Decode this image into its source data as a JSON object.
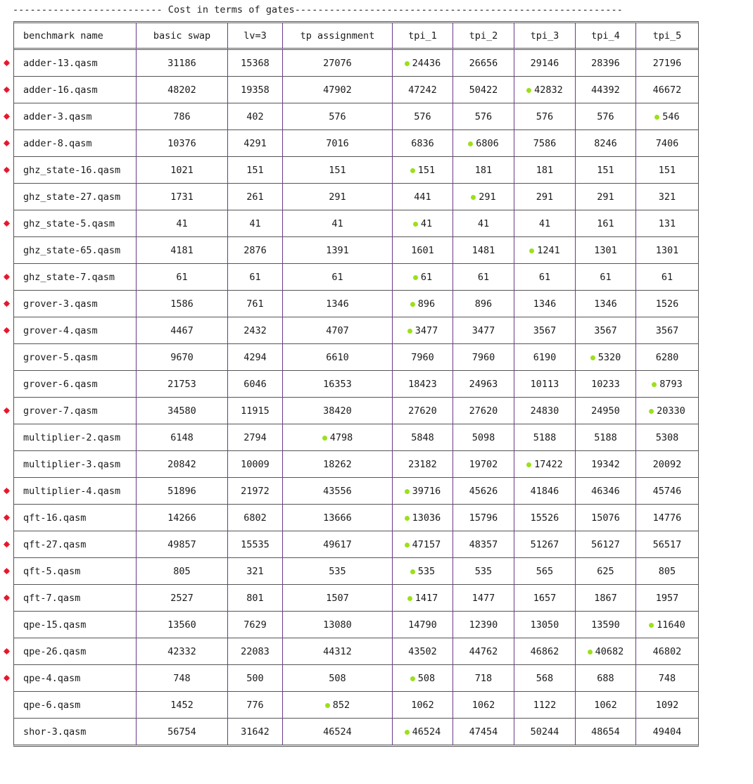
{
  "title": "-------------------------- Cost in terms of gates---------------------------------------------------------",
  "columns": [
    "benchmark name",
    "basic swap",
    "lv=3",
    "tp assignment",
    "tpi_1",
    "tpi_2",
    "tpi_3",
    "tpi_4",
    "tpi_5"
  ],
  "marker_colors": {
    "row_marker": "#e8162c",
    "best_marker": "#9be01a"
  },
  "rows": [
    {
      "name": "adder-13.qasm",
      "values": [
        "31186",
        "15368",
        "27076",
        "24436",
        "26656",
        "29146",
        "28396",
        "27196"
      ],
      "marked": true,
      "best": 3
    },
    {
      "name": "adder-16.qasm",
      "values": [
        "48202",
        "19358",
        "47902",
        "47242",
        "50422",
        "42832",
        "44392",
        "46672"
      ],
      "marked": true,
      "best": 5
    },
    {
      "name": "adder-3.qasm",
      "values": [
        "786",
        "402",
        "576",
        "576",
        "576",
        "576",
        "576",
        "546"
      ],
      "marked": true,
      "best": 7
    },
    {
      "name": "adder-8.qasm",
      "values": [
        "10376",
        "4291",
        "7016",
        "6836",
        "6806",
        "7586",
        "8246",
        "7406"
      ],
      "marked": true,
      "best": 4
    },
    {
      "name": "ghz_state-16.qasm",
      "values": [
        "1021",
        "151",
        "151",
        "151",
        "181",
        "181",
        "151",
        "151"
      ],
      "marked": true,
      "best": 3
    },
    {
      "name": "ghz_state-27.qasm",
      "values": [
        "1731",
        "261",
        "291",
        "441",
        "291",
        "291",
        "291",
        "321"
      ],
      "marked": false,
      "best": 4
    },
    {
      "name": "ghz_state-5.qasm",
      "values": [
        "41",
        "41",
        "41",
        "41",
        "41",
        "41",
        "161",
        "131"
      ],
      "marked": true,
      "best": 3
    },
    {
      "name": "ghz_state-65.qasm",
      "values": [
        "4181",
        "2876",
        "1391",
        "1601",
        "1481",
        "1241",
        "1301",
        "1301"
      ],
      "marked": false,
      "best": 5
    },
    {
      "name": "ghz_state-7.qasm",
      "values": [
        "61",
        "61",
        "61",
        "61",
        "61",
        "61",
        "61",
        "61"
      ],
      "marked": true,
      "best": 3
    },
    {
      "name": "grover-3.qasm",
      "values": [
        "1586",
        "761",
        "1346",
        "896",
        "896",
        "1346",
        "1346",
        "1526"
      ],
      "marked": true,
      "best": 3
    },
    {
      "name": "grover-4.qasm",
      "values": [
        "4467",
        "2432",
        "4707",
        "3477",
        "3477",
        "3567",
        "3567",
        "3567"
      ],
      "marked": true,
      "best": 3
    },
    {
      "name": "grover-5.qasm",
      "values": [
        "9670",
        "4294",
        "6610",
        "7960",
        "7960",
        "6190",
        "5320",
        "6280"
      ],
      "marked": false,
      "best": 6
    },
    {
      "name": "grover-6.qasm",
      "values": [
        "21753",
        "6046",
        "16353",
        "18423",
        "24963",
        "10113",
        "10233",
        "8793"
      ],
      "marked": false,
      "best": 7
    },
    {
      "name": "grover-7.qasm",
      "values": [
        "34580",
        "11915",
        "38420",
        "27620",
        "27620",
        "24830",
        "24950",
        "20330"
      ],
      "marked": true,
      "best": 7
    },
    {
      "name": "multiplier-2.qasm",
      "values": [
        "6148",
        "2794",
        "4798",
        "5848",
        "5098",
        "5188",
        "5188",
        "5308"
      ],
      "marked": false,
      "best": 2
    },
    {
      "name": "multiplier-3.qasm",
      "values": [
        "20842",
        "10009",
        "18262",
        "23182",
        "19702",
        "17422",
        "19342",
        "20092"
      ],
      "marked": false,
      "best": 5
    },
    {
      "name": "multiplier-4.qasm",
      "values": [
        "51896",
        "21972",
        "43556",
        "39716",
        "45626",
        "41846",
        "46346",
        "45746"
      ],
      "marked": true,
      "best": 3
    },
    {
      "name": "qft-16.qasm",
      "values": [
        "14266",
        "6802",
        "13666",
        "13036",
        "15796",
        "15526",
        "15076",
        "14776"
      ],
      "marked": true,
      "best": 3
    },
    {
      "name": "qft-27.qasm",
      "values": [
        "49857",
        "15535",
        "49617",
        "47157",
        "48357",
        "51267",
        "56127",
        "56517"
      ],
      "marked": true,
      "best": 3
    },
    {
      "name": "qft-5.qasm",
      "values": [
        "805",
        "321",
        "535",
        "535",
        "535",
        "565",
        "625",
        "805"
      ],
      "marked": true,
      "best": 3
    },
    {
      "name": "qft-7.qasm",
      "values": [
        "2527",
        "801",
        "1507",
        "1417",
        "1477",
        "1657",
        "1867",
        "1957"
      ],
      "marked": true,
      "best": 3
    },
    {
      "name": "qpe-15.qasm",
      "values": [
        "13560",
        "7629",
        "13080",
        "14790",
        "12390",
        "13050",
        "13590",
        "11640"
      ],
      "marked": false,
      "best": 7
    },
    {
      "name": "qpe-26.qasm",
      "values": [
        "42332",
        "22083",
        "44312",
        "43502",
        "44762",
        "46862",
        "40682",
        "46802"
      ],
      "marked": true,
      "best": 6
    },
    {
      "name": "qpe-4.qasm",
      "values": [
        "748",
        "500",
        "508",
        "508",
        "718",
        "568",
        "688",
        "748"
      ],
      "marked": true,
      "best": 3
    },
    {
      "name": "qpe-6.qasm",
      "values": [
        "1452",
        "776",
        "852",
        "1062",
        "1062",
        "1122",
        "1062",
        "1092"
      ],
      "marked": false,
      "best": 2
    },
    {
      "name": "shor-3.qasm",
      "values": [
        "56754",
        "31642",
        "46524",
        "46524",
        "47454",
        "50244",
        "48654",
        "49404"
      ],
      "marked": false,
      "best": 3
    }
  ]
}
